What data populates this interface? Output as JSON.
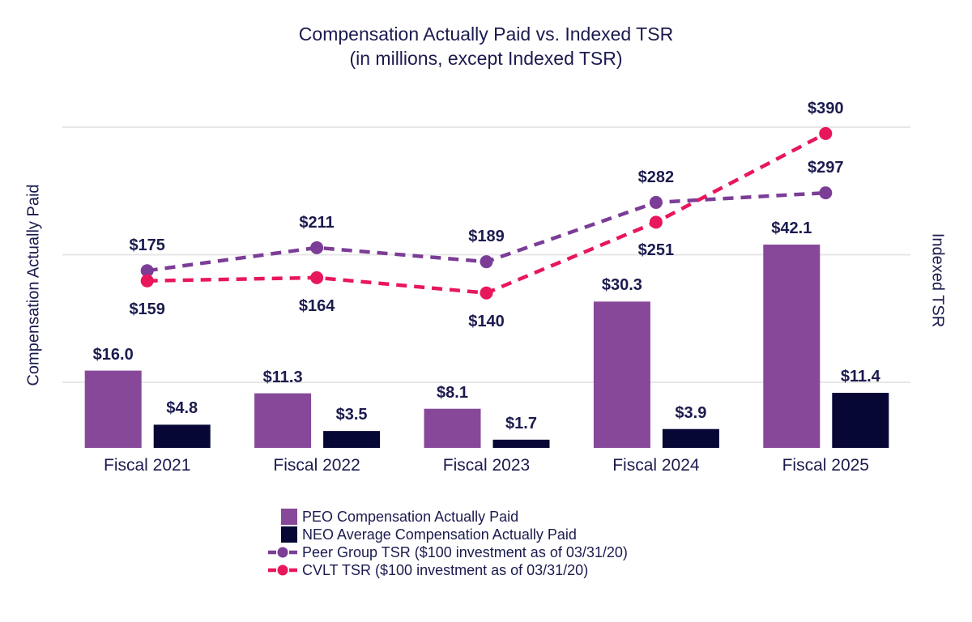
{
  "title": "Compensation Actually Paid vs. Indexed TSR",
  "subtitle": "(in millions, except Indexed TSR)",
  "colors": {
    "text": "#1b1b4f",
    "gridline": "#e7e7e7",
    "background": "#ffffff"
  },
  "chart_data": {
    "type": "bar+line combo, dual axis",
    "categories": [
      "Fiscal 2021",
      "Fiscal 2022",
      "Fiscal 2023",
      "Fiscal 2024",
      "Fiscal 2025"
    ],
    "left_axis": {
      "label": "Compensation Actually Paid",
      "range": [
        0,
        67
      ],
      "tick_labels_shown": false
    },
    "right_axis": {
      "label": "Indexed TSR",
      "range": [
        0,
        505
      ],
      "gridline_values": [
        0,
        200,
        400
      ],
      "tick_labels_shown": false
    },
    "grid": "horizontal light gray lines",
    "legend_position": "bottom-left",
    "bar_series": [
      {
        "key": "peo",
        "name": "PEO Compensation Actually Paid",
        "axis": "left",
        "color": "#87489a",
        "values": [
          16.0,
          11.3,
          8.1,
          30.3,
          42.1
        ],
        "labels": [
          "$16.0",
          "$11.3",
          "$8.1",
          "$30.3",
          "$42.1"
        ]
      },
      {
        "key": "neo",
        "name": "NEO Average Compensation Actually Paid",
        "axis": "left",
        "color": "#070735",
        "values": [
          4.8,
          3.5,
          1.7,
          3.9,
          11.4
        ],
        "labels": [
          "$4.8",
          "$3.5",
          "$1.7",
          "$3.9",
          "$11.4"
        ]
      }
    ],
    "line_series": [
      {
        "key": "peer",
        "name": "Peer Group TSR ($100 investment as of 03/31/20)",
        "axis": "right",
        "color": "#7b3d96",
        "style": "dashed with round markers",
        "values": [
          175,
          211,
          189,
          282,
          297
        ],
        "labels": [
          "$175",
          "$211",
          "$189",
          "$282",
          "$297"
        ],
        "label_side": [
          "above",
          "above",
          "above",
          "above",
          "above"
        ]
      },
      {
        "key": "cvlt",
        "name": "CVLT TSR ($100 investment as of 03/31/20)",
        "axis": "right",
        "color": "#e8175b",
        "style": "dashed with round markers",
        "values": [
          159,
          164,
          140,
          251,
          390
        ],
        "labels": [
          "$159",
          "$164",
          "$140",
          "$251",
          "$390"
        ],
        "label_side": [
          "below",
          "below",
          "below",
          "below",
          "above"
        ]
      }
    ]
  }
}
